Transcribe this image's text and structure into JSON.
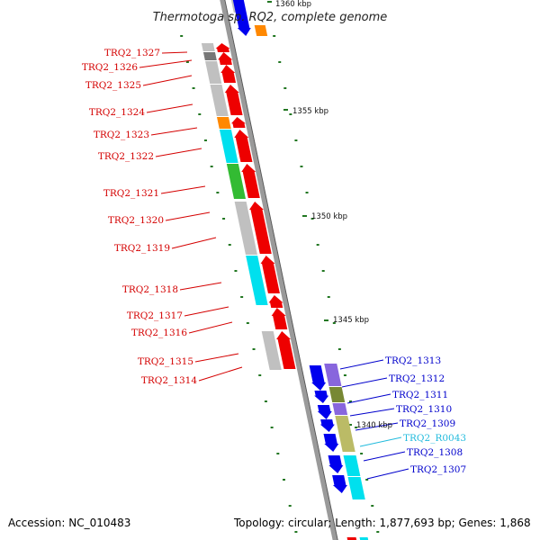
{
  "title": "Thermotoga sp. RQ2, complete genome",
  "footer": {
    "accession": "Accession: NC_010483",
    "topology": "Topology: circular; Length: 1,877,693 bp; Genes: 1,868"
  },
  "scale_labels": [
    "1360 kbp",
    "1355 kbp",
    "1350 kbp",
    "1345 kbp",
    "1340 kbp"
  ],
  "reverse_genes": [
    "TRQ2_1327",
    "TRQ2_1326",
    "TRQ2_1325",
    "TRQ2_1324",
    "TRQ2_1323",
    "TRQ2_1322",
    "TRQ2_1321",
    "TRQ2_1320",
    "TRQ2_1319",
    "TRQ2_1318",
    "TRQ2_1317",
    "TRQ2_1316",
    "TRQ2_1315",
    "TRQ2_1314"
  ],
  "forward_genes": [
    "TRQ2_1313",
    "TRQ2_1312",
    "TRQ2_1311",
    "TRQ2_1310",
    "TRQ2_1309",
    "TRQ2_R0043",
    "TRQ2_1308",
    "TRQ2_1307"
  ],
  "colors": {
    "reverse_label": "#d40000",
    "forward_label": "#0000cc",
    "rna_label": "#22bbdd",
    "gene_arrow_reverse": "#ee0000",
    "gene_arrow_forward": "#0000ee",
    "backbone": "#999999",
    "tick": "#227722",
    "cog_grey": "#c0c0c0",
    "cog_dark_grey": "#777777",
    "cog_orange": "#ff8800",
    "cog_cyan": "#00e0ee",
    "cog_green": "#33bb33",
    "cog_purple": "#8866dd",
    "cog_olive": "#778833",
    "cog_khaki": "#bbbb66"
  }
}
